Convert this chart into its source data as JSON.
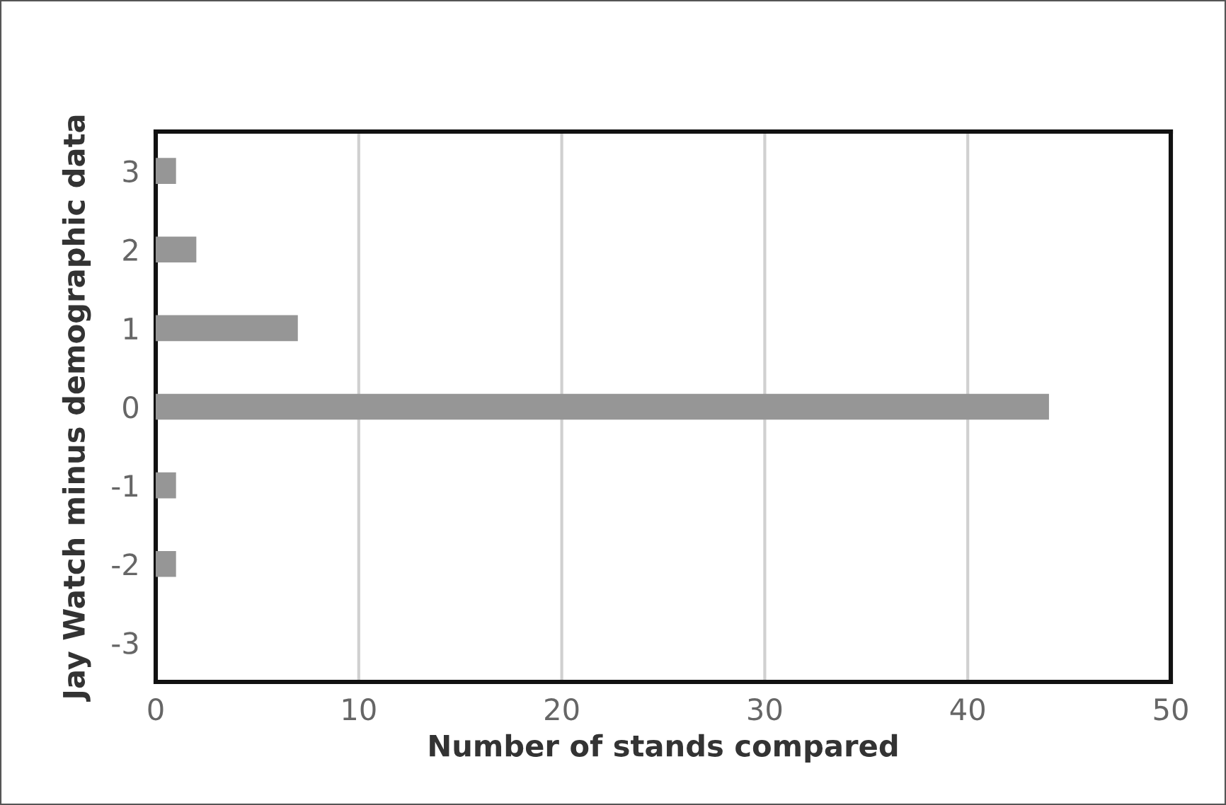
{
  "chart_data": {
    "type": "bar",
    "orientation": "horizontal",
    "xlabel": "Number of stands compared",
    "ylabel": "Jay Watch minus demographic data",
    "categories": [
      "3",
      "2",
      "1",
      "0",
      "-1",
      "-2",
      "-3"
    ],
    "values": [
      1,
      2,
      7,
      44,
      1,
      1,
      0
    ],
    "color": "#969696",
    "xlim": [
      0,
      50
    ],
    "xticks": [
      0,
      10,
      20,
      30,
      40,
      50
    ],
    "grid": "x"
  }
}
